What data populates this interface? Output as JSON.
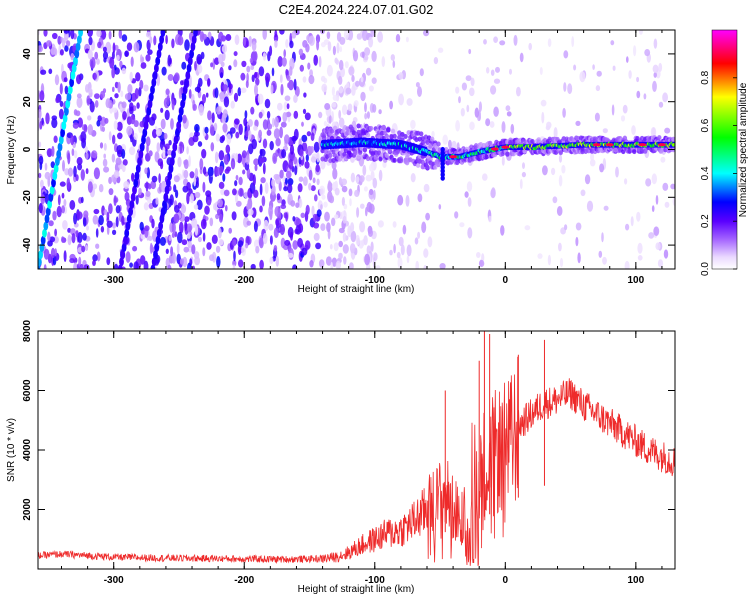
{
  "title": "C2E4.2024.224.07.01.G02",
  "colors": {
    "snr_line": "#ee2a2a",
    "spectrogram_colormap": [
      "#ffffff",
      "#ead9ff",
      "#a86aff",
      "#5a00ff",
      "#0000ff",
      "#00ffff",
      "#00ff00",
      "#ffff00",
      "#ff0000",
      "#ff00ff"
    ]
  },
  "chart_data": [
    {
      "type": "heatmap",
      "xlabel": "Height of straight line (km)",
      "ylabel": "Frequency (Hz)",
      "xlim": [
        -358,
        130
      ],
      "ylim": [
        -50,
        50
      ],
      "xticks": [
        -300,
        -200,
        -100,
        0,
        100
      ],
      "yticks": [
        -40,
        -20,
        0,
        20,
        40
      ],
      "colorbar": {
        "label": "Normalized spectral amplitude",
        "range": [
          0,
          1
        ],
        "ticks": [
          0.0,
          0.2,
          0.4,
          0.6,
          0.8
        ],
        "tick_labels": [
          "0.0",
          "0.2",
          "0.4",
          "0.6",
          "0.8"
        ]
      },
      "structure": {
        "noise_region_x": [
          -358,
          -142
        ],
        "signal_region_x": [
          -142,
          130
        ],
        "carrier_track": [
          {
            "x": -140,
            "f": 2
          },
          {
            "x": -110,
            "f": 3
          },
          {
            "x": -80,
            "f": 2
          },
          {
            "x": -60,
            "f": -1
          },
          {
            "x": -50,
            "f": -3
          },
          {
            "x": -35,
            "f": -3
          },
          {
            "x": -20,
            "f": -1
          },
          {
            "x": 0,
            "f": 1
          },
          {
            "x": 20,
            "f": 1
          },
          {
            "x": 60,
            "f": 2
          },
          {
            "x": 100,
            "f": 2
          },
          {
            "x": 130,
            "f": 2
          }
        ],
        "diagonal_streaks_x_at_f_minus50": [
          -358,
          -295,
          -270
        ]
      }
    },
    {
      "type": "line",
      "xlabel": "Height of straight line (km)",
      "ylabel": "SNR (10 * v/v)",
      "xlim": [
        -358,
        130
      ],
      "ylim": [
        0,
        8000
      ],
      "xticks": [
        -300,
        -200,
        -100,
        0,
        100
      ],
      "yticks": [
        2000,
        4000,
        6000,
        8000
      ],
      "series": [
        {
          "x": [
            -358,
            -340,
            -320,
            -300,
            -280,
            -260,
            -240,
            -220,
            -200,
            -180,
            -160,
            -140,
            -130,
            -120,
            -110,
            -100,
            -90,
            -80,
            -70,
            -60,
            -50,
            -45,
            -40,
            -35,
            -30,
            -25,
            -20,
            -15,
            -10,
            -5,
            0,
            5,
            10,
            15,
            20,
            25,
            30,
            35,
            40,
            45,
            50,
            55,
            60,
            70,
            80,
            90,
            100,
            110,
            120,
            130
          ],
          "y": [
            450,
            500,
            450,
            400,
            380,
            370,
            360,
            350,
            340,
            330,
            330,
            350,
            400,
            550,
            800,
            1000,
            1200,
            1300,
            1600,
            2000,
            2400,
            2500,
            2000,
            1900,
            2200,
            3400,
            3600,
            3500,
            3800,
            4000,
            4100,
            4300,
            4800,
            5000,
            5200,
            5400,
            5600,
            5600,
            5700,
            5800,
            5900,
            5700,
            5500,
            5200,
            4900,
            4600,
            4300,
            4000,
            3800,
            3600
          ],
          "spikes": [
            {
              "x": -46,
              "y": 6000
            },
            {
              "x": -20,
              "y": 7000
            },
            {
              "x": -16,
              "y": 8000
            },
            {
              "x": -12,
              "y": 7900
            },
            {
              "x": 10,
              "y": 7200
            },
            {
              "x": 30,
              "y": 7700
            }
          ]
        }
      ]
    }
  ]
}
